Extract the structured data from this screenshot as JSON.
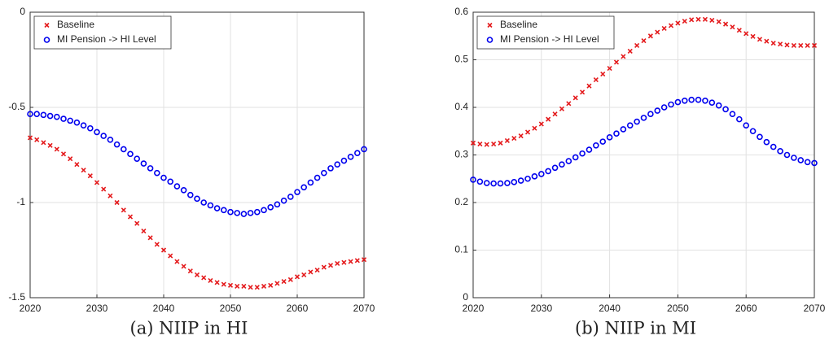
{
  "chart_data": [
    {
      "type": "scatter",
      "caption": "(a) NIIP in HI",
      "x": [
        2020,
        2021,
        2022,
        2023,
        2024,
        2025,
        2026,
        2027,
        2028,
        2029,
        2030,
        2031,
        2032,
        2033,
        2034,
        2035,
        2036,
        2037,
        2038,
        2039,
        2040,
        2041,
        2042,
        2043,
        2044,
        2045,
        2046,
        2047,
        2048,
        2049,
        2050,
        2051,
        2052,
        2053,
        2054,
        2055,
        2056,
        2057,
        2058,
        2059,
        2060,
        2061,
        2062,
        2063,
        2064,
        2065,
        2066,
        2067,
        2068,
        2069,
        2070
      ],
      "series": [
        {
          "name": "Baseline",
          "color": "#e41a1c",
          "marker": "x",
          "values": [
            -0.66,
            -0.67,
            -0.685,
            -0.7,
            -0.72,
            -0.745,
            -0.77,
            -0.8,
            -0.83,
            -0.86,
            -0.895,
            -0.93,
            -0.965,
            -1.0,
            -1.04,
            -1.075,
            -1.11,
            -1.15,
            -1.185,
            -1.22,
            -1.25,
            -1.28,
            -1.31,
            -1.335,
            -1.36,
            -1.38,
            -1.395,
            -1.41,
            -1.42,
            -1.43,
            -1.435,
            -1.44,
            -1.44,
            -1.445,
            -1.445,
            -1.44,
            -1.435,
            -1.425,
            -1.415,
            -1.405,
            -1.39,
            -1.38,
            -1.365,
            -1.355,
            -1.34,
            -1.33,
            -1.32,
            -1.315,
            -1.31,
            -1.305,
            -1.3
          ]
        },
        {
          "name": "MI Pension -> HI Level",
          "color": "#0000ee",
          "marker": "o",
          "values": [
            -0.535,
            -0.535,
            -0.54,
            -0.545,
            -0.55,
            -0.56,
            -0.57,
            -0.58,
            -0.595,
            -0.61,
            -0.63,
            -0.65,
            -0.67,
            -0.695,
            -0.72,
            -0.745,
            -0.77,
            -0.795,
            -0.82,
            -0.845,
            -0.87,
            -0.89,
            -0.915,
            -0.935,
            -0.96,
            -0.98,
            -1.0,
            -1.015,
            -1.03,
            -1.04,
            -1.05,
            -1.055,
            -1.06,
            -1.055,
            -1.05,
            -1.04,
            -1.025,
            -1.01,
            -0.99,
            -0.97,
            -0.945,
            -0.92,
            -0.895,
            -0.87,
            -0.845,
            -0.82,
            -0.8,
            -0.78,
            -0.76,
            -0.74,
            -0.72
          ]
        }
      ],
      "xlim": [
        2020,
        2070
      ],
      "xticks": [
        2020,
        2030,
        2040,
        2050,
        2060,
        2070
      ],
      "ylim": [
        -1.5,
        0
      ],
      "yticks": [
        -1.5,
        -1,
        -0.5,
        0
      ],
      "grid": true,
      "legend": "upper-left"
    },
    {
      "type": "scatter",
      "caption": "(b) NIIP in MI",
      "x": [
        2020,
        2021,
        2022,
        2023,
        2024,
        2025,
        2026,
        2027,
        2028,
        2029,
        2030,
        2031,
        2032,
        2033,
        2034,
        2035,
        2036,
        2037,
        2038,
        2039,
        2040,
        2041,
        2042,
        2043,
        2044,
        2045,
        2046,
        2047,
        2048,
        2049,
        2050,
        2051,
        2052,
        2053,
        2054,
        2055,
        2056,
        2057,
        2058,
        2059,
        2060,
        2061,
        2062,
        2063,
        2064,
        2065,
        2066,
        2067,
        2068,
        2069,
        2070
      ],
      "series": [
        {
          "name": "Baseline",
          "color": "#e41a1c",
          "marker": "x",
          "values": [
            0.325,
            0.323,
            0.322,
            0.323,
            0.325,
            0.33,
            0.335,
            0.34,
            0.348,
            0.356,
            0.365,
            0.375,
            0.386,
            0.397,
            0.408,
            0.42,
            0.432,
            0.445,
            0.458,
            0.47,
            0.482,
            0.495,
            0.507,
            0.518,
            0.53,
            0.54,
            0.55,
            0.558,
            0.566,
            0.572,
            0.577,
            0.581,
            0.584,
            0.585,
            0.585,
            0.583,
            0.58,
            0.575,
            0.569,
            0.562,
            0.555,
            0.549,
            0.543,
            0.539,
            0.535,
            0.533,
            0.531,
            0.53,
            0.53,
            0.53,
            0.53
          ]
        },
        {
          "name": "MI Pension -> HI Level",
          "color": "#0000ee",
          "marker": "o",
          "values": [
            0.248,
            0.244,
            0.241,
            0.24,
            0.24,
            0.241,
            0.243,
            0.246,
            0.25,
            0.255,
            0.26,
            0.266,
            0.273,
            0.28,
            0.287,
            0.295,
            0.303,
            0.311,
            0.32,
            0.328,
            0.337,
            0.345,
            0.354,
            0.362,
            0.37,
            0.378,
            0.386,
            0.393,
            0.4,
            0.406,
            0.411,
            0.414,
            0.416,
            0.416,
            0.414,
            0.41,
            0.404,
            0.396,
            0.386,
            0.375,
            0.362,
            0.35,
            0.338,
            0.327,
            0.317,
            0.308,
            0.3,
            0.294,
            0.289,
            0.285,
            0.283
          ]
        }
      ],
      "xlim": [
        2020,
        2070
      ],
      "xticks": [
        2020,
        2030,
        2040,
        2050,
        2060,
        2070
      ],
      "ylim": [
        0,
        0.6
      ],
      "yticks": [
        0,
        0.1,
        0.2,
        0.3,
        0.4,
        0.5,
        0.6
      ],
      "grid": true,
      "legend": "upper-left"
    }
  ]
}
